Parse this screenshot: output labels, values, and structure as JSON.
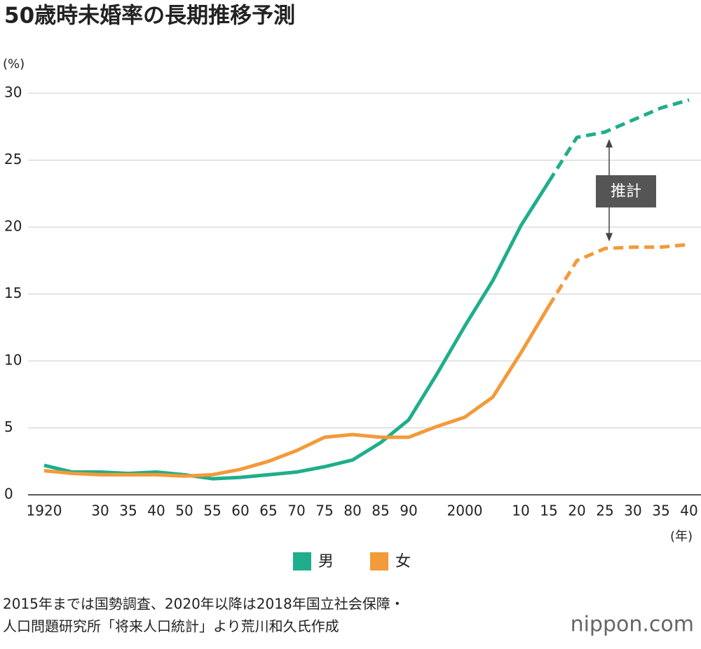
{
  "chart_data": {
    "type": "line",
    "title": "50歳時未婚率の長期推移予測",
    "y_label": "(%)",
    "x_label": "(年)",
    "categories": [
      "1920",
      null,
      "30",
      "35",
      "40",
      "50",
      "55",
      "60",
      "65",
      "70",
      "75",
      "80",
      "85",
      "90",
      null,
      "2000",
      null,
      "10",
      "15",
      "20",
      "25",
      "30",
      "35",
      "40"
    ],
    "series": [
      {
        "name": "男",
        "color": "#1fae8b",
        "values": [
          2.2,
          1.7,
          1.7,
          1.6,
          1.7,
          1.5,
          1.2,
          1.3,
          1.5,
          1.7,
          2.1,
          2.6,
          3.9,
          5.6,
          9.0,
          12.6,
          16.0,
          20.1,
          23.4,
          26.7,
          27.1,
          28.0,
          28.9,
          29.5
        ]
      },
      {
        "name": "女",
        "color": "#f39a3a",
        "values": [
          1.8,
          1.6,
          1.5,
          1.5,
          1.5,
          1.4,
          1.5,
          1.9,
          2.5,
          3.3,
          4.3,
          4.5,
          4.3,
          4.3,
          5.1,
          5.8,
          7.3,
          10.6,
          14.1,
          17.5,
          18.4,
          18.5,
          18.5,
          18.7
        ]
      }
    ],
    "projection_from": "15",
    "annotation": "推計",
    "ylim": [
      0,
      30
    ],
    "yticks": [
      0,
      5,
      10,
      15,
      20,
      25,
      30
    ],
    "grid": true,
    "source": [
      "2015年までは国勢調査、2020年以降は2018年国立社会保障・",
      "人口問題研究所「将来人口統計」より荒川和久氏作成"
    ],
    "watermark": "nippon.com"
  }
}
